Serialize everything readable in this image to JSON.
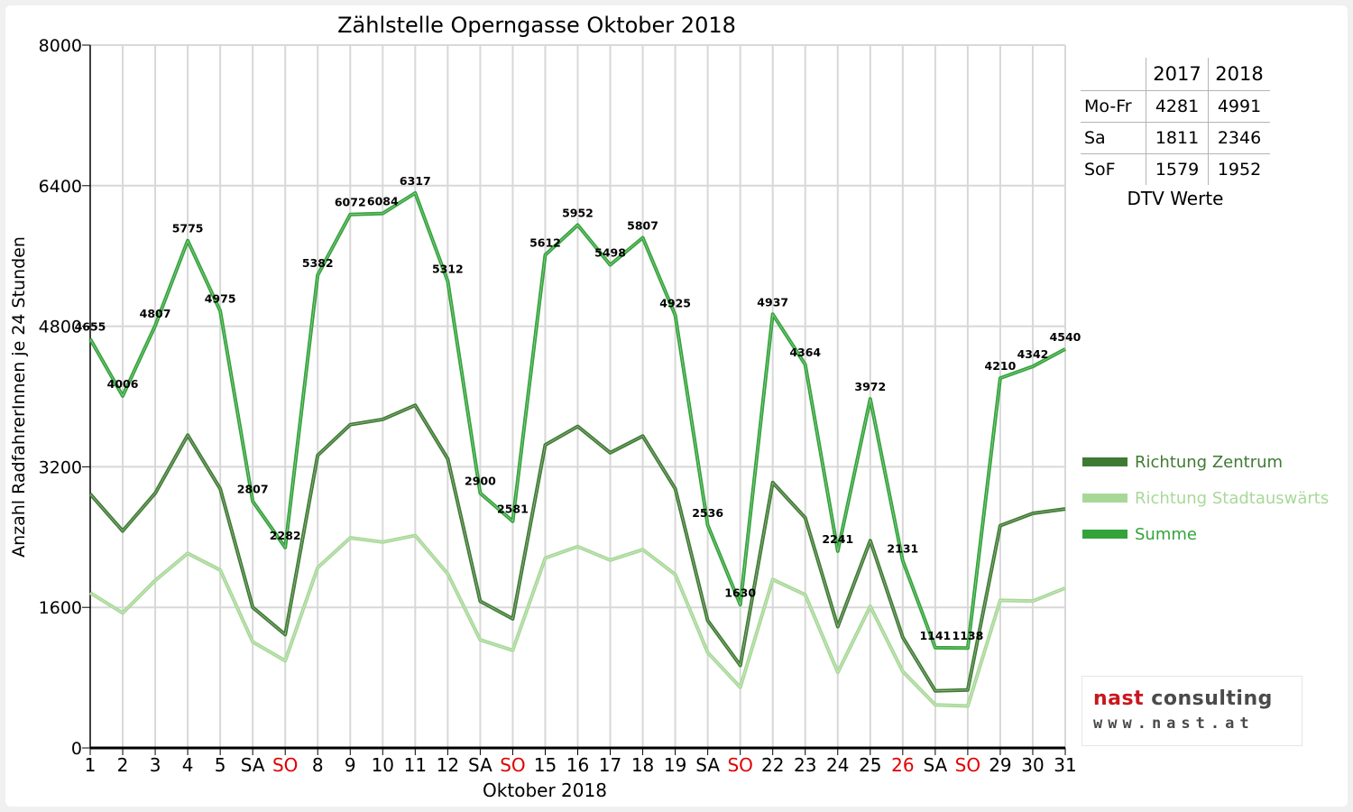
{
  "chart_data": {
    "type": "line",
    "title": "Zählstelle Operngasse Oktober 2018",
    "xlabel": "Oktober 2018",
    "ylabel": "Anzahl RadfahrerInnen je 24 Stunden",
    "ylim": [
      0,
      8000
    ],
    "yticks": [
      0,
      1600,
      3200,
      4800,
      6400,
      8000
    ],
    "grid": true,
    "legend_position": "right",
    "categories": [
      "1",
      "2",
      "3",
      "4",
      "5",
      "SA",
      "SO",
      "8",
      "9",
      "10",
      "11",
      "12",
      "SA",
      "SO",
      "15",
      "16",
      "17",
      "18",
      "19",
      "SA",
      "SO",
      "22",
      "23",
      "24",
      "25",
      "26",
      "SA",
      "SO",
      "29",
      "30",
      "31"
    ],
    "red_categories": [
      6,
      13,
      20,
      25,
      27
    ],
    "series": [
      {
        "name": "Richtung Zentrum",
        "color": "#3f7a33",
        "labels": false,
        "values": [
          2890,
          2470,
          2900,
          3560,
          2950,
          1600,
          1290,
          3330,
          3680,
          3740,
          3900,
          3290,
          1670,
          1470,
          3450,
          3660,
          3360,
          3550,
          2950,
          1450,
          940,
          3020,
          2620,
          1380,
          2360,
          1260,
          650,
          660,
          2530,
          2670,
          2720
        ]
      },
      {
        "name": "Richtung Stadtauswärts",
        "color": "#a8d898",
        "labels": false,
        "values": [
          1765,
          1536,
          1907,
          2215,
          2025,
          1207,
          992,
          2052,
          2392,
          2344,
          2417,
          1982,
          1230,
          1111,
          2162,
          2292,
          2138,
          2257,
          1975,
          1086,
          690,
          1917,
          1744,
          861,
          1612,
          871,
          491,
          478,
          1680,
          1672,
          1820
        ]
      },
      {
        "name": "Summe",
        "color": "#33a33a",
        "labels": true,
        "values": [
          4655,
          4006,
          4807,
          5775,
          4975,
          2807,
          2282,
          5382,
          6072,
          6084,
          6317,
          5312,
          2900,
          2581,
          5612,
          5952,
          5498,
          5807,
          4925,
          2536,
          1630,
          4937,
          4364,
          2241,
          3972,
          2131,
          1141,
          1138,
          4210,
          4342,
          4540
        ]
      }
    ]
  },
  "dtv_table": {
    "columns": [
      "2017",
      "2018"
    ],
    "rows": [
      {
        "label": "Mo-Fr",
        "v2017": "4281",
        "v2018": "4991"
      },
      {
        "label": "Sa",
        "v2017": "1811",
        "v2018": "2346"
      },
      {
        "label": "SoF",
        "v2017": "1579",
        "v2018": "1952"
      }
    ],
    "caption": "DTV Werte"
  },
  "logo": {
    "text_a": "nast",
    "text_b": " consulting",
    "url": "www.nast.at"
  },
  "colors": {
    "red_label": "#e00000",
    "zentrum": "#3f7a33",
    "stadtauswaerts": "#a8d898",
    "summe": "#33a33a",
    "logo_red": "#c8171e"
  }
}
